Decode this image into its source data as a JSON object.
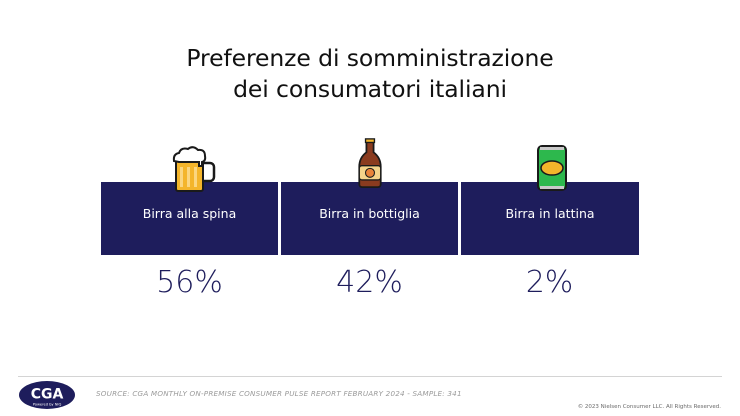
{
  "chart_data": {
    "type": "table",
    "title": [
      "Preferenze di somministrazione",
      "dei consumatori italiani"
    ],
    "categories": [
      "Birra alla spina",
      "Birra in bottiglia",
      "Birra in lattina"
    ],
    "values": [
      "56%",
      "42%",
      "2%"
    ],
    "series": [
      {
        "values": [
          56,
          42,
          2
        ]
      }
    ],
    "icons": [
      "beer-mug-icon",
      "beer-bottle-icon",
      "beer-can-icon"
    ]
  },
  "footer": {
    "source": "SOURCE: CGA MONTHLY ON-PREMISE CONSUMER PULSE REPORT FEBRUARY 2024 - SAMPLE: 341",
    "copyright": "© 2023 Nielsen Consumer LLC. All Rights Reserved.",
    "logo_text": "CGA",
    "logo_subtext": "Powered by NIQ"
  },
  "colors": {
    "panel": "#1e1d5c",
    "value_text": "#1e1d5c",
    "beer": "#f4b52b",
    "can": "#2db84d",
    "bottle": "#8a3b1f"
  }
}
